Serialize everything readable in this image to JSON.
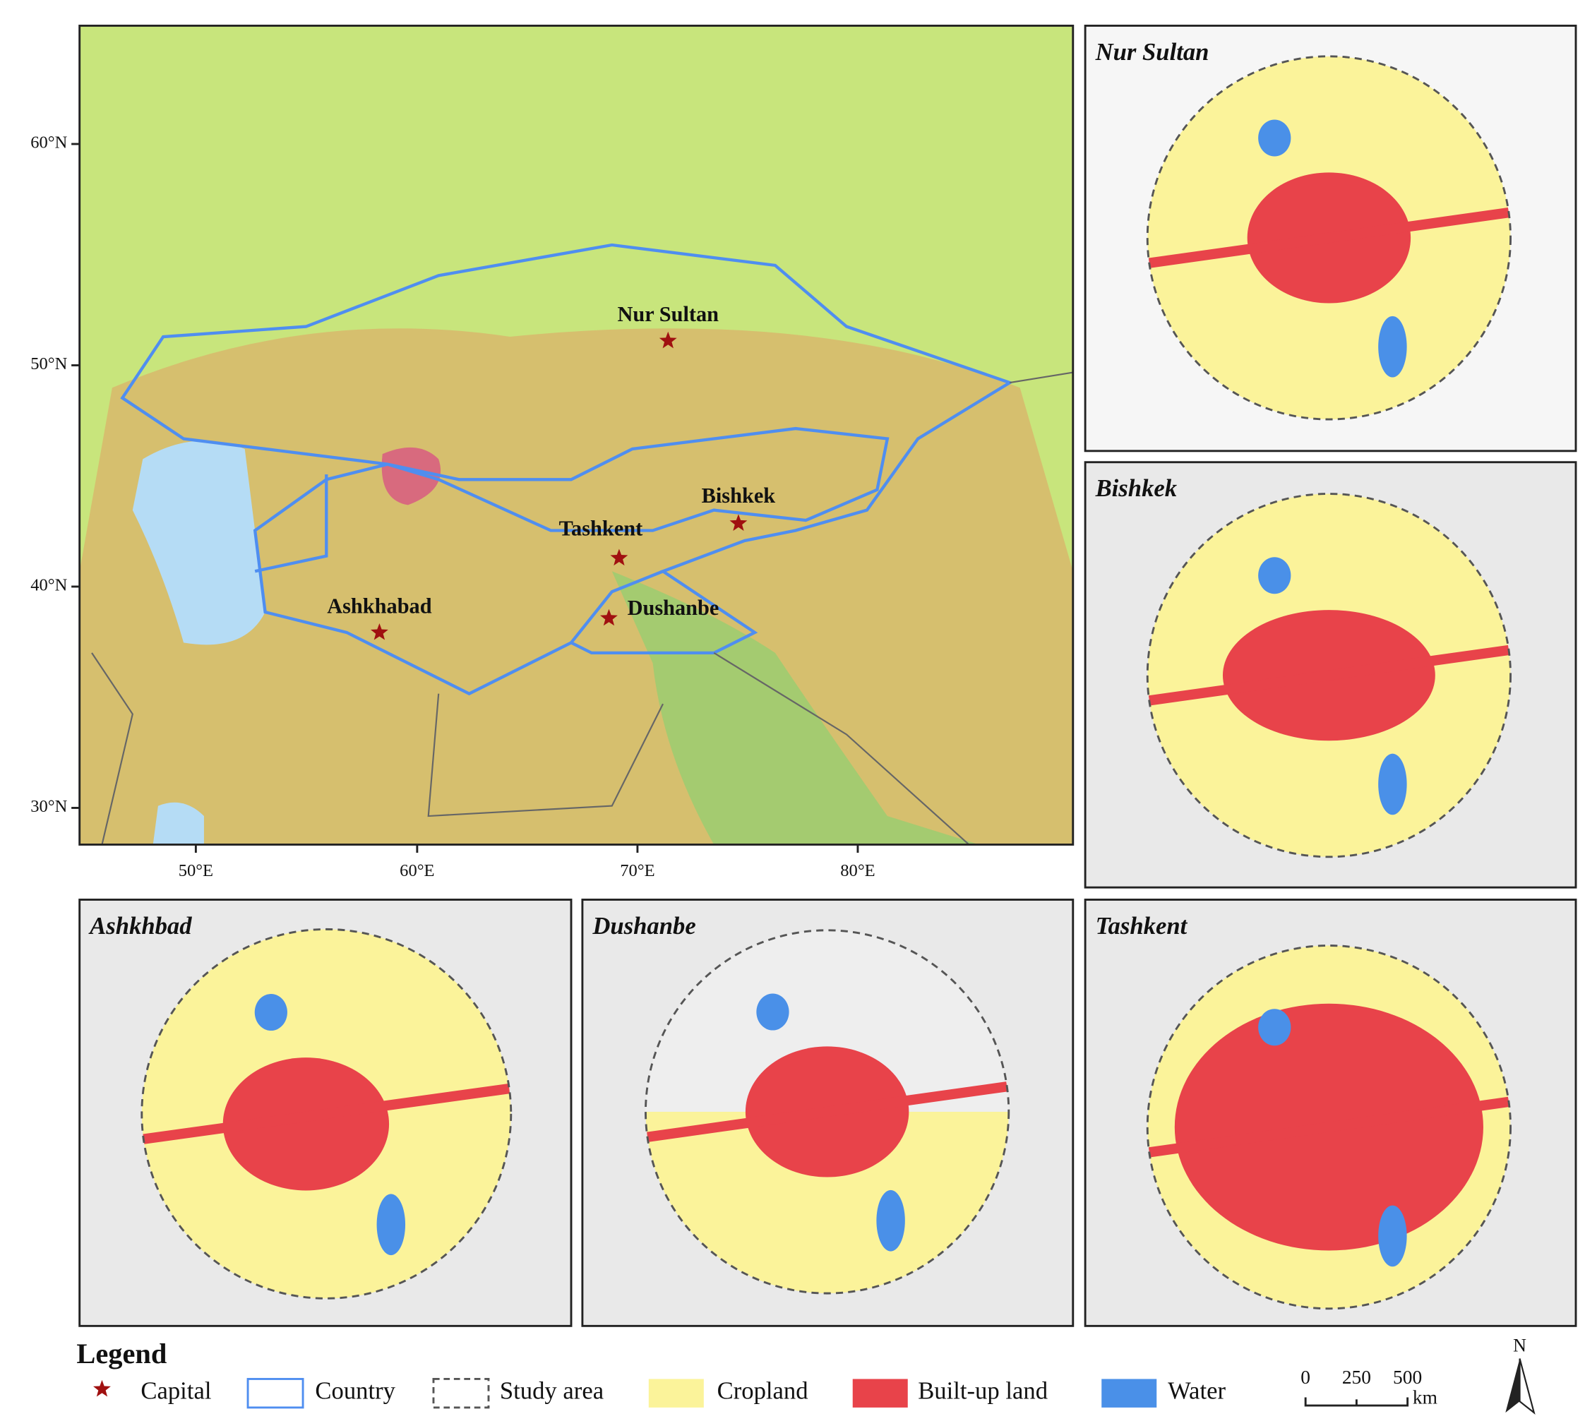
{
  "main_map": {
    "lat_labels": [
      "60°N",
      "50°N",
      "40°N",
      "30°N"
    ],
    "lon_labels": [
      "50°E",
      "60°E",
      "70°E",
      "80°E"
    ],
    "cities": [
      "Nur Sultan",
      "Bishkek",
      "Tashkent",
      "Dushanbe",
      "Ashkhabad"
    ]
  },
  "panels": [
    "Nur Sultan",
    "Bishkek",
    "Ashkhbad",
    "Dushanbe",
    "Tashkent"
  ],
  "legend": {
    "title": "Legend",
    "items": [
      "Capital",
      "Country",
      "Study area",
      "Cropland",
      "Built-up land",
      "Water"
    ]
  },
  "scale_bar": {
    "labels": [
      0,
      250,
      500
    ],
    "unit": "km"
  },
  "north": "N"
}
